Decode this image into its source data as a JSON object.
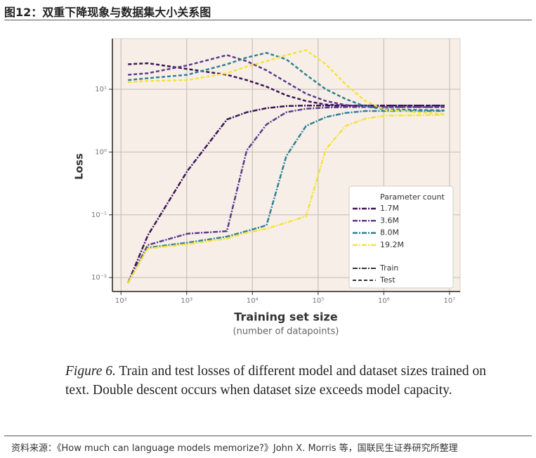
{
  "header": {
    "title": "图12：双重下降现象与数据集大小关系图"
  },
  "chart_data": {
    "type": "line",
    "y_label": "Loss",
    "x_label": "Training set size",
    "x_sublabel": "(number of datapoints)",
    "log_x": true,
    "log_y": true,
    "grid": true,
    "xlim": [
      74,
      14500000
    ],
    "ylim": [
      0.006,
      64
    ],
    "xticks": [
      {
        "value": 100,
        "label": "10²"
      },
      {
        "value": 1000,
        "label": "10³"
      },
      {
        "value": 10000,
        "label": "10⁴"
      },
      {
        "value": 100000,
        "label": "10⁵"
      },
      {
        "value": 1000000,
        "label": "10⁶"
      },
      {
        "value": 10000000,
        "label": "10⁷"
      }
    ],
    "yticks": [
      {
        "value": 0.01,
        "label": "10⁻²"
      },
      {
        "value": 0.1,
        "label": "10⁻¹"
      },
      {
        "value": 1,
        "label": "10⁰"
      },
      {
        "value": 10,
        "label": "10¹"
      }
    ],
    "x": [
      128,
      256,
      1024,
      4096,
      8192,
      16384,
      32768,
      65536,
      131072,
      262144,
      524288,
      1048576,
      8388608
    ],
    "legend_title": "Parameter count",
    "legend_position": "lower right",
    "series": [
      {
        "name": "1.7M",
        "color": "#3d1358",
        "train": [
          0.0082,
          0.047,
          0.5,
          3.3,
          4.3,
          5.0,
          5.4,
          5.5,
          5.5,
          5.5,
          5.5,
          5.5,
          5.5
        ],
        "test": [
          25,
          26,
          21,
          17,
          14,
          11,
          8,
          6.5,
          5.7,
          5.5,
          5.5,
          5.5,
          5.5
        ]
      },
      {
        "name": "3.6M",
        "color": "#5c3a8e",
        "train": [
          0.0082,
          0.033,
          0.05,
          0.055,
          1.06,
          2.75,
          4.3,
          4.9,
          5.1,
          5.2,
          5.2,
          5.2,
          5.2
        ],
        "test": [
          17,
          18,
          24,
          35,
          28,
          20,
          13,
          8.5,
          6.5,
          5.6,
          5.3,
          5.2,
          5.2
        ]
      },
      {
        "name": "8.0M",
        "color": "#2e8095",
        "train": [
          0.0082,
          0.03,
          0.036,
          0.045,
          0.055,
          0.068,
          0.86,
          2.6,
          3.6,
          4.2,
          4.5,
          4.5,
          4.5
        ],
        "test": [
          14,
          15,
          17,
          25,
          32,
          38,
          30,
          17,
          10,
          7,
          5.3,
          4.8,
          4.6
        ]
      },
      {
        "name": "19.2M",
        "color": "#f4e23c",
        "train": [
          0.0082,
          0.029,
          0.034,
          0.042,
          0.052,
          0.06,
          0.075,
          0.095,
          1.11,
          2.6,
          3.4,
          3.8,
          3.9
        ],
        "test": [
          13,
          13.5,
          14,
          18,
          23,
          28,
          35,
          42,
          25,
          12,
          6.5,
          4.7,
          4.0
        ]
      }
    ],
    "line_styles": [
      {
        "name": "Train",
        "dash": "7 2 2 2"
      },
      {
        "name": "Test",
        "dash": "5 3"
      }
    ]
  },
  "caption": {
    "label": "Figure 6.",
    "text": "Train and test losses of different model and dataset sizes trained on text. Double descent occurs when dataset size exceeds model capacity."
  },
  "source": "资料来源：《How much can language models memorize?》John X. Morris 等，国联民生证券研究所整理"
}
